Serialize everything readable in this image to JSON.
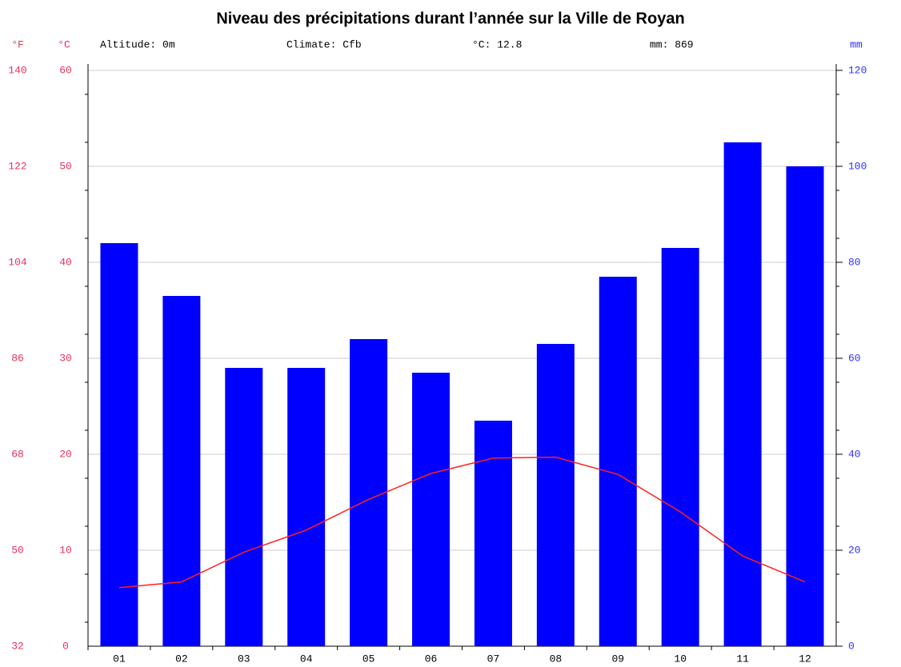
{
  "chart_data": {
    "type": "bar",
    "title": "Niveau des précipitations durant l’année sur la Ville de Royan",
    "annotations": [
      "Altitude: 0m",
      "Climate: Cfb",
      "°C: 12.8",
      "mm: 869"
    ],
    "fahrenheit_label": "°F",
    "ylabel": "°C",
    "y2label": "mm",
    "categories": [
      "01",
      "02",
      "03",
      "04",
      "05",
      "06",
      "07",
      "08",
      "09",
      "10",
      "11",
      "12"
    ],
    "series": [
      {
        "type": "bar",
        "axis": "y2",
        "color": "#0000ff",
        "values": [
          84,
          73,
          58,
          58,
          64,
          57,
          47,
          63,
          77,
          83,
          105,
          100
        ]
      },
      {
        "type": "line",
        "color": "#ff2020",
        "values": [
          6.1,
          6.7,
          9.8,
          12.1,
          15.3,
          18.0,
          19.6,
          19.7,
          17.9,
          14.0,
          9.4,
          6.7
        ]
      }
    ],
    "ylim": [
      0,
      60
    ],
    "yticks": [
      0,
      10,
      20,
      30,
      40,
      50,
      60
    ],
    "fahrenheit_lim": [
      32,
      140
    ],
    "fahrenheit_ticks": [
      32,
      50,
      68,
      86,
      104,
      122,
      140
    ],
    "y2lim": [
      0,
      120
    ],
    "y2ticks": [
      0,
      20,
      40,
      60,
      80,
      100,
      120
    ],
    "grid": true
  }
}
